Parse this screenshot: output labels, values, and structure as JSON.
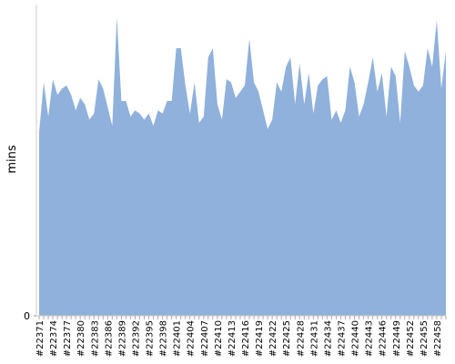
{
  "chart_data": {
    "type": "area",
    "ylabel": "mins",
    "categories": [
      "#22371",
      null,
      null,
      "#22374",
      null,
      null,
      "#22377",
      null,
      null,
      "#22380",
      null,
      null,
      "#22383",
      null,
      null,
      "#22386",
      null,
      null,
      "#22389",
      null,
      null,
      "#22392",
      null,
      null,
      "#22395",
      null,
      null,
      "#22398",
      null,
      null,
      "#22401",
      null,
      null,
      "#22404",
      null,
      null,
      "#22407",
      null,
      null,
      "#22410",
      null,
      null,
      "#22413",
      null,
      null,
      "#22416",
      null,
      null,
      "#22419",
      null,
      null,
      "#22422",
      null,
      null,
      "#22425",
      null,
      null,
      "#22428",
      null,
      null,
      "#22431",
      null,
      null,
      "#22434",
      null,
      null,
      "#22437",
      null,
      null,
      "#22440",
      null,
      null,
      "#22443",
      null,
      null,
      "#22446",
      null,
      null,
      "#22449",
      null,
      null,
      "#22452",
      null,
      null,
      "#22455",
      null,
      null,
      "#22458",
      null,
      null
    ],
    "values": [
      59,
      75,
      64,
      76,
      71,
      73,
      74,
      71,
      66,
      70,
      68,
      63,
      65,
      76,
      73,
      67,
      61,
      96,
      69,
      69,
      64,
      66,
      65,
      63,
      65,
      61,
      66,
      65,
      69,
      69,
      86,
      86,
      74,
      65,
      75,
      62,
      64,
      83,
      86,
      68,
      63,
      76,
      75,
      70,
      72,
      74,
      89,
      75,
      72,
      66,
      60,
      63,
      75,
      72,
      80,
      83,
      68,
      81,
      68,
      78,
      65,
      74,
      76,
      77,
      63,
      66,
      62,
      66,
      80,
      75,
      64,
      68,
      75,
      83,
      72,
      78,
      64,
      80,
      77,
      62,
      85,
      80,
      74,
      72,
      74,
      86,
      80,
      95,
      73,
      85
    ],
    "color": "#8fb1db",
    "ylim": [
      0,
      100
    ],
    "yticks": [
      0
    ]
  }
}
